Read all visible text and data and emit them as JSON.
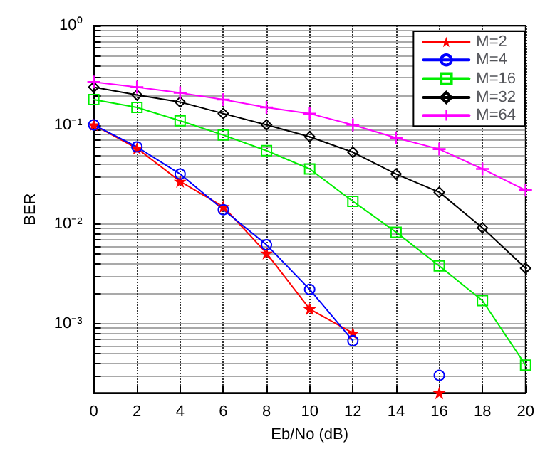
{
  "chart_data": {
    "type": "line",
    "xlabel": "Eb/No (dB)",
    "ylabel": "BER",
    "log": "y",
    "grid": true,
    "legend": "top right",
    "line_style": "solid",
    "x": [
      0,
      2,
      4,
      6,
      8,
      10,
      12,
      14,
      16,
      18,
      20
    ],
    "xlim": [
      0,
      20
    ],
    "xticks": [
      0,
      2,
      4,
      6,
      8,
      10,
      12,
      14,
      16,
      18,
      20
    ],
    "ylim": [
      0.0002,
      1
    ],
    "yticks": [
      {
        "value": 1,
        "label": "10⁰"
      },
      {
        "value": 0.1,
        "label": "10⁻¹"
      },
      {
        "value": 0.01,
        "label": "10⁻²"
      },
      {
        "value": 0.001,
        "label": "10⁻³"
      },
      {
        "value": 0.0002,
        "label": null
      },
      {
        "value": 0.0003,
        "label": null
      },
      {
        "value": 0.0004,
        "label": null
      },
      {
        "value": 0.0005,
        "label": null
      },
      {
        "value": 0.0006,
        "label": null
      },
      {
        "value": 0.0007,
        "label": null
      },
      {
        "value": 0.0008,
        "label": null
      },
      {
        "value": 0.0009,
        "label": null
      },
      {
        "value": 0.002,
        "label": null
      },
      {
        "value": 0.003,
        "label": null
      },
      {
        "value": 0.004,
        "label": null
      },
      {
        "value": 0.005,
        "label": null
      },
      {
        "value": 0.006,
        "label": null
      },
      {
        "value": 0.007,
        "label": null
      },
      {
        "value": 0.008,
        "label": null
      },
      {
        "value": 0.009,
        "label": null
      },
      {
        "value": 0.02,
        "label": null
      },
      {
        "value": 0.03,
        "label": null
      },
      {
        "value": 0.04,
        "label": null
      },
      {
        "value": 0.05,
        "label": null
      },
      {
        "value": 0.06,
        "label": null
      },
      {
        "value": 0.07,
        "label": null
      },
      {
        "value": 0.08,
        "label": null
      },
      {
        "value": 0.09,
        "label": null
      },
      {
        "value": 0.2,
        "label": null
      },
      {
        "value": 0.3,
        "label": null
      },
      {
        "value": 0.4,
        "label": null
      },
      {
        "value": 0.5,
        "label": null
      },
      {
        "value": 0.6,
        "label": null
      },
      {
        "value": 0.7,
        "label": null
      },
      {
        "value": 0.8,
        "label": null
      },
      {
        "value": 0.9,
        "label": null
      }
    ],
    "series": [
      {
        "name": "M=2",
        "color": "#ff0000",
        "marker": "star",
        "values": [
          0.1,
          0.058,
          0.027,
          0.015,
          0.0051,
          0.0014,
          0.0008,
          null,
          0.0002,
          null,
          null
        ]
      },
      {
        "name": "M=4",
        "color": "#0000ff",
        "marker": "circle",
        "values": [
          0.1,
          0.06,
          0.032,
          0.014,
          0.0062,
          0.0022,
          0.00067,
          null,
          0.0003,
          null,
          null
        ]
      },
      {
        "name": "M=16",
        "color": "#00ee00",
        "marker": "square",
        "values": [
          0.18,
          0.15,
          0.11,
          0.079,
          0.055,
          0.036,
          0.017,
          0.0083,
          0.0038,
          0.0017,
          0.00038
        ]
      },
      {
        "name": "M=32",
        "color": "#000000",
        "marker": "diamond",
        "values": [
          0.24,
          0.2,
          0.17,
          0.13,
          0.1,
          0.076,
          0.053,
          0.032,
          0.021,
          0.0092,
          0.0036
        ]
      },
      {
        "name": "M=64",
        "color": "#ff00ff",
        "marker": "cross",
        "values": [
          0.27,
          0.24,
          0.21,
          0.18,
          0.15,
          0.13,
          0.1,
          0.074,
          0.057,
          0.036,
          0.022
        ]
      }
    ]
  }
}
